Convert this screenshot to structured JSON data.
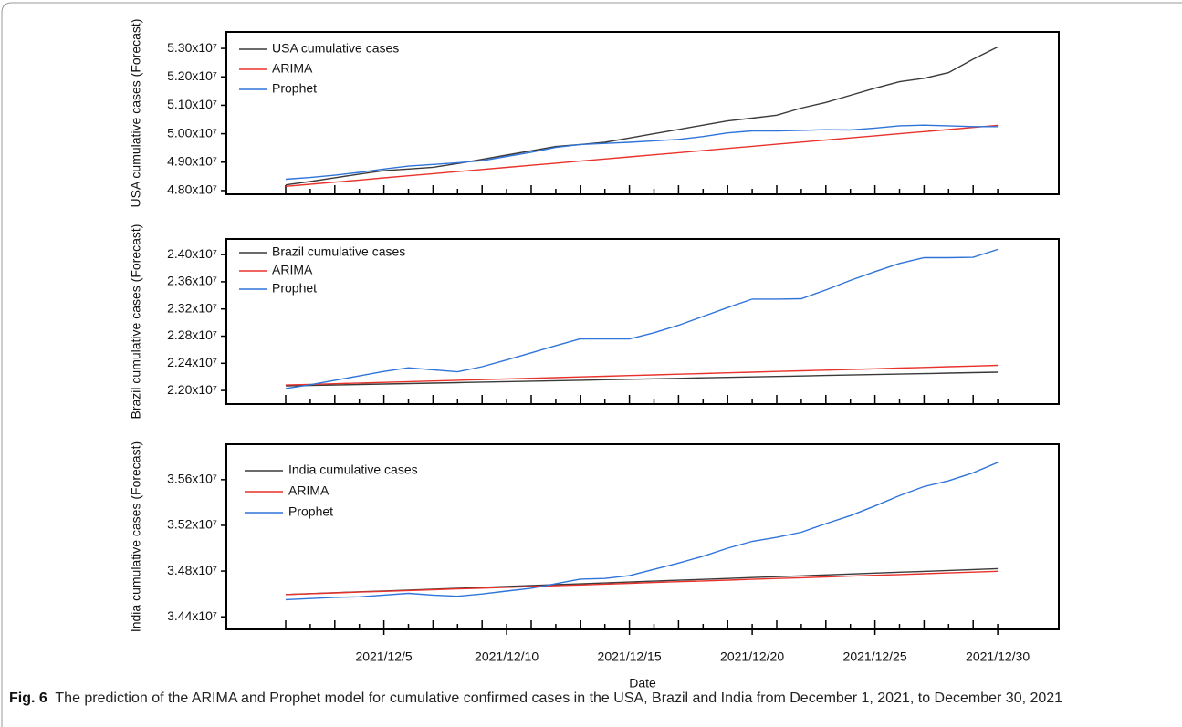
{
  "chart_data": [
    {
      "type": "line",
      "y_label": "USA cumulative cases (Forecast)",
      "legend": "upper left",
      "x": [
        "2021/12/1",
        "2021/12/2",
        "2021/12/3",
        "2021/12/4",
        "2021/12/5",
        "2021/12/6",
        "2021/12/7",
        "2021/12/8",
        "2021/12/9",
        "2021/12/10",
        "2021/12/11",
        "2021/12/12",
        "2021/12/13",
        "2021/12/14",
        "2021/12/15",
        "2021/12/16",
        "2021/12/17",
        "2021/12/18",
        "2021/12/19",
        "2021/12/20",
        "2021/12/21",
        "2021/12/22",
        "2021/12/23",
        "2021/12/24",
        "2021/12/25",
        "2021/12/26",
        "2021/12/27",
        "2021/12/28",
        "2021/12/29",
        "2021/12/30"
      ],
      "ylim": [
        47870000,
        53580000
      ],
      "yticks": [
        {
          "value": 48000000,
          "label": "4.80x10⁷"
        },
        {
          "value": 49000000,
          "label": "4.90x10⁷"
        },
        {
          "value": 50000000,
          "label": "5.00x10⁷"
        },
        {
          "value": 51000000,
          "label": "5.10x10⁷"
        },
        {
          "value": 52000000,
          "label": "5.20x10⁷"
        },
        {
          "value": 53000000,
          "label": "5.30x10⁷"
        }
      ],
      "series": [
        {
          "name": "USA cumulative cases",
          "color": "#3a3a3a",
          "values": [
            48200000,
            48320000,
            48450000,
            48580000,
            48700000,
            48760000,
            48820000,
            48950000,
            49100000,
            49250000,
            49400000,
            49550000,
            49620000,
            49700000,
            49850000,
            50000000,
            50150000,
            50300000,
            50450000,
            50550000,
            50650000,
            50900000,
            51100000,
            51350000,
            51600000,
            51830000,
            51950000,
            52150000,
            52620000,
            53050000
          ]
        },
        {
          "name": "ARIMA",
          "color": "#e8322c",
          "values": [
            48150000,
            48224000,
            48298000,
            48372000,
            48446000,
            48520000,
            48594000,
            48668000,
            48742000,
            48816000,
            48890000,
            48964000,
            49038000,
            49112000,
            49186000,
            49260000,
            49334000,
            49408000,
            49482000,
            49556000,
            49630000,
            49704000,
            49778000,
            49852000,
            49926000,
            50000000,
            50074000,
            50148000,
            50222000,
            50296000
          ]
        },
        {
          "name": "Prophet",
          "color": "#2f74d9",
          "values": [
            48400000,
            48460000,
            48540000,
            48640000,
            48760000,
            48860000,
            48920000,
            48980000,
            49050000,
            49200000,
            49350000,
            49520000,
            49620000,
            49660000,
            49700000,
            49750000,
            49800000,
            49900000,
            50030000,
            50100000,
            50100000,
            50120000,
            50140000,
            50130000,
            50200000,
            50280000,
            50300000,
            50280000,
            50250000,
            50250000
          ]
        }
      ]
    },
    {
      "type": "line",
      "y_label": "Brazil cumulative cases (Forecast)",
      "legend": "upper left",
      "x": [
        "2021/12/1",
        "2021/12/2",
        "2021/12/3",
        "2021/12/4",
        "2021/12/5",
        "2021/12/6",
        "2021/12/7",
        "2021/12/8",
        "2021/12/9",
        "2021/12/10",
        "2021/12/11",
        "2021/12/12",
        "2021/12/13",
        "2021/12/14",
        "2021/12/15",
        "2021/12/16",
        "2021/12/17",
        "2021/12/18",
        "2021/12/19",
        "2021/12/20",
        "2021/12/21",
        "2021/12/22",
        "2021/12/23",
        "2021/12/24",
        "2021/12/25",
        "2021/12/26",
        "2021/12/27",
        "2021/12/28",
        "2021/12/29",
        "2021/12/30"
      ],
      "ylim": [
        21800000,
        24230000
      ],
      "yticks": [
        {
          "value": 22000000,
          "label": "2.20x10⁷"
        },
        {
          "value": 22400000,
          "label": "2.24x10⁷"
        },
        {
          "value": 22800000,
          "label": "2.28x10⁷"
        },
        {
          "value": 23200000,
          "label": "2.32x10⁷"
        },
        {
          "value": 23600000,
          "label": "2.36x10⁷"
        },
        {
          "value": 24000000,
          "label": "2.40x10⁷"
        }
      ],
      "series": [
        {
          "name": "Brazil cumulative cases",
          "color": "#3a3a3a",
          "values": [
            22067000,
            22074000,
            22081000,
            22088000,
            22095000,
            22102000,
            22109000,
            22116000,
            22123000,
            22130000,
            22137000,
            22144000,
            22151000,
            22158000,
            22165000,
            22172000,
            22179000,
            22186000,
            22193000,
            22200000,
            22207000,
            22214000,
            22221000,
            22228000,
            22235000,
            22242000,
            22249000,
            22256000,
            22263000,
            22270000
          ]
        },
        {
          "name": "ARIMA",
          "color": "#e8322c",
          "values": [
            22080000,
            22090000,
            22100000,
            22110000,
            22120000,
            22130000,
            22140000,
            22150000,
            22160000,
            22170000,
            22180000,
            22190000,
            22200000,
            22210000,
            22220000,
            22230000,
            22240000,
            22250000,
            22260000,
            22270000,
            22280000,
            22290000,
            22300000,
            22310000,
            22320000,
            22330000,
            22340000,
            22350000,
            22360000,
            22370000
          ]
        },
        {
          "name": "Prophet",
          "color": "#2f74d9",
          "values": [
            22030000,
            22085000,
            22150000,
            22215000,
            22280000,
            22335000,
            22305000,
            22275000,
            22350000,
            22450000,
            22555000,
            22660000,
            22760000,
            22760000,
            22760000,
            22850000,
            22960000,
            23090000,
            23220000,
            23345000,
            23345000,
            23350000,
            23480000,
            23620000,
            23750000,
            23870000,
            23955000,
            23955000,
            23960000,
            24075000
          ]
        }
      ]
    },
    {
      "type": "line",
      "y_label": "India cumulative cases (Forecast)",
      "x_label": "Date",
      "legend": "upper left",
      "x": [
        "2021/12/1",
        "2021/12/2",
        "2021/12/3",
        "2021/12/4",
        "2021/12/5",
        "2021/12/6",
        "2021/12/7",
        "2021/12/8",
        "2021/12/9",
        "2021/12/10",
        "2021/12/11",
        "2021/12/12",
        "2021/12/13",
        "2021/12/14",
        "2021/12/15",
        "2021/12/16",
        "2021/12/17",
        "2021/12/18",
        "2021/12/19",
        "2021/12/20",
        "2021/12/21",
        "2021/12/22",
        "2021/12/23",
        "2021/12/24",
        "2021/12/25",
        "2021/12/26",
        "2021/12/27",
        "2021/12/28",
        "2021/12/29",
        "2021/12/30"
      ],
      "xticks": [
        "2021/12/5",
        "2021/12/10",
        "2021/12/15",
        "2021/12/20",
        "2021/12/25",
        "2021/12/30"
      ],
      "ylim": [
        34290000,
        35910000
      ],
      "yticks": [
        {
          "value": 34400000,
          "label": "3.44x10⁷"
        },
        {
          "value": 34800000,
          "label": "3.48x10⁷"
        },
        {
          "value": 35200000,
          "label": "3.52x10⁷"
        },
        {
          "value": 35600000,
          "label": "3.56x10⁷"
        }
      ],
      "series": [
        {
          "name": "India cumulative cases",
          "color": "#3a3a3a",
          "values": [
            34595000,
            34602800,
            34610600,
            34618400,
            34626200,
            34634000,
            34641800,
            34649600,
            34657400,
            34665200,
            34673000,
            34680800,
            34688600,
            34696400,
            34704200,
            34712000,
            34719800,
            34727600,
            34735400,
            34743200,
            34751000,
            34758800,
            34766600,
            34774400,
            34782200,
            34790000,
            34797800,
            34805600,
            34813400,
            34821200
          ]
        },
        {
          "name": "ARIMA",
          "color": "#e8322c",
          "values": [
            34595000,
            34602000,
            34609000,
            34616000,
            34623000,
            34630000,
            34637000,
            34644000,
            34651000,
            34658000,
            34665000,
            34672000,
            34679000,
            34686000,
            34693000,
            34700000,
            34707000,
            34714000,
            34721000,
            34728000,
            34735000,
            34742000,
            34749000,
            34756000,
            34763000,
            34770000,
            34777000,
            34784000,
            34791000,
            34798000
          ]
        },
        {
          "name": "Prophet",
          "color": "#2f74d9",
          "values": [
            34550000,
            34560000,
            34570000,
            34575000,
            34590000,
            34605000,
            34590000,
            34580000,
            34600000,
            34625000,
            34650000,
            34690000,
            34730000,
            34735000,
            34760000,
            34815000,
            34870000,
            34930000,
            35000000,
            35060000,
            35095000,
            35140000,
            35215000,
            35285000,
            35370000,
            35460000,
            35540000,
            35590000,
            35660000,
            35750000
          ]
        }
      ]
    }
  ],
  "caption": {
    "label": "Fig. 6",
    "text": "The prediction of the ARIMA and Prophet model for cumulative confirmed cases in the USA, Brazil and India from December 1, 2021, to December 30, 2021"
  }
}
